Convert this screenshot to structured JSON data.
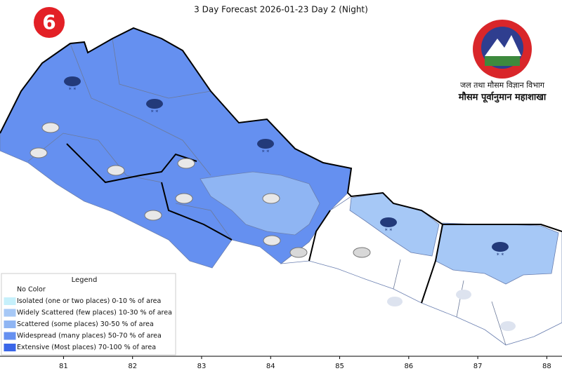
{
  "header": {
    "title": "3 Day Forecast 2026-01-23 Day 2 (Night)"
  },
  "logo": {
    "org_line1": "जल तथा मौसम विज्ञान विभाग",
    "org_line2": "मौसम पूर्वानुमान महाशाखा",
    "badge": "6"
  },
  "map": {
    "xlim": [
      80.08,
      88.22
    ],
    "xticks": [
      81,
      82,
      83,
      84,
      85,
      86,
      87,
      88
    ]
  },
  "legend": {
    "title": "Legend",
    "items": [
      {
        "label": "No Color",
        "color": "#ffffff"
      },
      {
        "label": "Isolated (one or two places)  0-10 % of area",
        "color": "#c6f0fb"
      },
      {
        "label": "Widely Scattered (few places)  10-30 % of area",
        "color": "#a6c8f6"
      },
      {
        "label": "Scattered (some places)  30-50 % of area",
        "color": "#8fb5f3"
      },
      {
        "label": "Widespread (many places)  50-70 % of area",
        "color": "#6590f0"
      },
      {
        "label": "Extensive (Most places)  70-100 % of area",
        "color": "#3a66e8"
      }
    ]
  }
}
